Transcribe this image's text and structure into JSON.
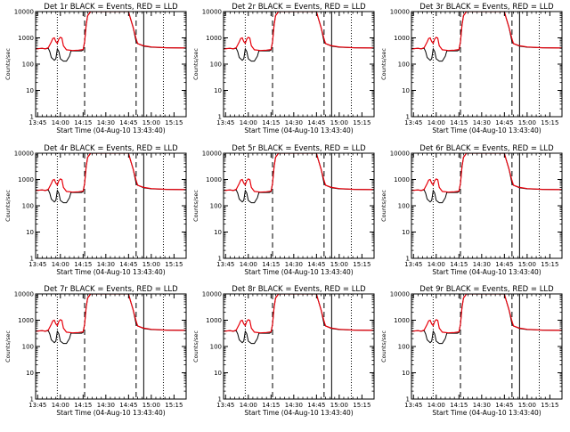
{
  "colors": {
    "events": "#000000",
    "lld": "#e8000b",
    "background": "#ffffff"
  },
  "charts": [
    {
      "title": "Det 1r BLACK = Events, RED = LLD",
      "xlabel": "Start Time (04-Aug-10 13:43:40)",
      "ylabel": "Counts/sec"
    },
    {
      "title": "Det 2r BLACK = Events, RED = LLD",
      "xlabel": "Start Time (04-Aug-10 13:43:40)",
      "ylabel": "Counts/sec"
    },
    {
      "title": "Det 3r BLACK = Events, RED = LLD",
      "xlabel": "Start Time (04-Aug-10 13:43:40)",
      "ylabel": "Counts/sec"
    },
    {
      "title": "Det 4r BLACK = Events, RED = LLD",
      "xlabel": "Start Time (04-Aug-10 13:43:40)",
      "ylabel": "Counts/sec"
    },
    {
      "title": "Det 5r BLACK = Events, RED = LLD",
      "xlabel": "Start Time (04-Aug-10 13:43:40)",
      "ylabel": "Counts/sec"
    },
    {
      "title": "Det 6r BLACK = Events, RED = LLD",
      "xlabel": "Start Time (04-Aug-10 13:43:40)",
      "ylabel": "Counts/sec"
    },
    {
      "title": "Det 7r BLACK = Events, RED = LLD",
      "xlabel": "Start Time (04-Aug-10 13:43:40)",
      "ylabel": "Counts/sec"
    },
    {
      "title": "Det 8r BLACK = Events, RED = LLD",
      "xlabel": "Start Time (04-Aug-10 13:43:40)",
      "ylabel": "Counts/sec"
    },
    {
      "title": "Det 9r BLACK = Events, RED = LLD",
      "xlabel": "Start Time (04-Aug-10 13:43:40)",
      "ylabel": "Counts/sec"
    }
  ],
  "chart_data": {
    "type": "line",
    "panel_count": 9,
    "y_scale": "log",
    "ylim": [
      1,
      10000
    ],
    "y_ticks": [
      1,
      10,
      100,
      1000,
      10000
    ],
    "y_tick_labels": [
      "1",
      "10",
      "100",
      "1000",
      "10000"
    ],
    "xlim": [
      "13:43:40",
      "15:23:00"
    ],
    "x_ticks": [
      "13:45",
      "14:00",
      "14:15",
      "14:30",
      "14:45",
      "15:00",
      "15:15"
    ],
    "marker_lines": [
      {
        "time": "13:58",
        "style": "dotted"
      },
      {
        "time": "14:16",
        "style": "dashed"
      },
      {
        "time": "14:50",
        "style": "dashed"
      },
      {
        "time": "14:55",
        "style": "solid"
      },
      {
        "time": "15:08",
        "style": "dotted"
      }
    ],
    "series": [
      {
        "name": "LLD",
        "color": "#e8000b",
        "points": [
          [
            "13:43:40",
            380
          ],
          [
            "13:48",
            400
          ],
          [
            "13:50",
            380
          ],
          [
            "13:52",
            420
          ],
          [
            "13:54",
            700
          ],
          [
            "13:55",
            950
          ],
          [
            "13:56",
            1000
          ],
          [
            "13:57",
            720
          ],
          [
            "13:58",
            620
          ],
          [
            "13:59",
            900
          ],
          [
            "14:00",
            1050
          ],
          [
            "14:01",
            980
          ],
          [
            "14:02",
            500
          ],
          [
            "14:04",
            350
          ],
          [
            "14:08",
            330
          ],
          [
            "14:12",
            340
          ],
          [
            "14:15",
            360
          ],
          [
            "14:16",
            700
          ],
          [
            "14:17",
            3000
          ],
          [
            "14:18",
            7000
          ],
          [
            "14:20",
            10000
          ],
          [
            "14:45",
            10000
          ],
          [
            "14:46",
            6000
          ],
          [
            "14:48",
            2500
          ],
          [
            "14:50",
            900
          ],
          [
            "14:51",
            600
          ],
          [
            "14:55",
            500
          ],
          [
            "15:00",
            450
          ],
          [
            "15:10",
            420
          ],
          [
            "15:23:00",
            410
          ]
        ]
      },
      {
        "name": "Events",
        "color": "#000000",
        "points": [
          [
            "13:43:40",
            380
          ],
          [
            "13:48",
            400
          ],
          [
            "13:50",
            380
          ],
          [
            "13:52",
            400
          ],
          [
            "13:53",
            300
          ],
          [
            "13:54",
            180
          ],
          [
            "13:56",
            140
          ],
          [
            "13:57",
            160
          ],
          [
            "13:58",
            380
          ],
          [
            "13:59",
            300
          ],
          [
            "14:00",
            160
          ],
          [
            "14:02",
            130
          ],
          [
            "14:04",
            130
          ],
          [
            "14:06",
            200
          ],
          [
            "14:07",
            320
          ],
          [
            "14:10",
            320
          ],
          [
            "14:14",
            320
          ],
          [
            "14:15",
            340
          ],
          [
            "14:16",
            700
          ],
          [
            "14:17",
            3000
          ],
          [
            "14:18",
            7000
          ],
          [
            "14:20",
            10000
          ],
          [
            "14:45",
            10000
          ],
          [
            "14:46",
            6000
          ],
          [
            "14:48",
            2500
          ],
          [
            "14:50",
            700
          ],
          [
            "14:51",
            600
          ],
          [
            "14:55",
            480
          ],
          [
            "15:00",
            440
          ],
          [
            "15:10",
            420
          ],
          [
            "15:23:00",
            410
          ]
        ]
      }
    ]
  }
}
